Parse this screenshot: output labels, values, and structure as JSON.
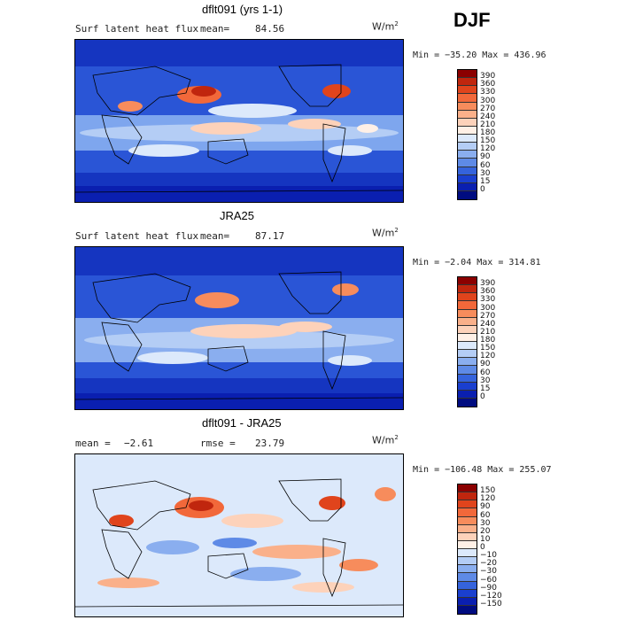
{
  "season": "DJF",
  "panels": [
    {
      "title": "dflt091 (yrs 1-1)",
      "left_label": "Surf latent heat flux",
      "mean_label": "mean=",
      "mean_value": "84.56",
      "units_base": "W/m",
      "units_exp": "2",
      "stats": "Min = −35.20 Max = 436.96",
      "colorbar_labels": [
        "390",
        "360",
        "330",
        "300",
        "270",
        "240",
        "210",
        "180",
        "150",
        "120",
        "90",
        "60",
        "30",
        "15",
        "0"
      ],
      "colorbar_colors": [
        "#8b0000",
        "#c0260e",
        "#e0441c",
        "#f2683a",
        "#f78c5c",
        "#fab08a",
        "#fdd2ba",
        "#fff0e6",
        "#dce9fb",
        "#b4cdf5",
        "#8aaeef",
        "#5e8ae6",
        "#3563dc",
        "#1a3fcf",
        "#0a1fb0",
        "#000c80"
      ]
    },
    {
      "title": "JRA25",
      "left_label": "Surf latent heat flux",
      "mean_label": "mean=",
      "mean_value": "87.17",
      "units_base": "W/m",
      "units_exp": "2",
      "stats": "Min = −2.04 Max = 314.81",
      "colorbar_labels": [
        "390",
        "360",
        "330",
        "300",
        "270",
        "240",
        "210",
        "180",
        "150",
        "120",
        "90",
        "60",
        "30",
        "15",
        "0"
      ],
      "colorbar_colors": [
        "#8b0000",
        "#c0260e",
        "#e0441c",
        "#f2683a",
        "#f78c5c",
        "#fab08a",
        "#fdd2ba",
        "#fff0e6",
        "#dce9fb",
        "#b4cdf5",
        "#8aaeef",
        "#5e8ae6",
        "#3563dc",
        "#1a3fcf",
        "#0a1fb0",
        "#000c80"
      ]
    },
    {
      "title": "dflt091 - JRA25",
      "left_label": "mean =",
      "mean_label": "",
      "mean_value": "−2.61",
      "rmse_label": "rmse =",
      "rmse_value": "23.79",
      "units_base": "W/m",
      "units_exp": "2",
      "stats": "Min = −106.48 Max = 255.07",
      "colorbar_labels": [
        "150",
        "120",
        "90",
        "60",
        "30",
        "20",
        "10",
        "0",
        "−10",
        "−20",
        "−30",
        "−60",
        "−90",
        "−120",
        "−150"
      ],
      "colorbar_colors": [
        "#8b0000",
        "#c0260e",
        "#e0441c",
        "#f2683a",
        "#f78c5c",
        "#fab08a",
        "#fdd2ba",
        "#fff0e6",
        "#dce9fb",
        "#b4cdf5",
        "#8aaeef",
        "#5e8ae6",
        "#3563dc",
        "#1a3fcf",
        "#0a1fb0",
        "#000c80"
      ]
    }
  ]
}
